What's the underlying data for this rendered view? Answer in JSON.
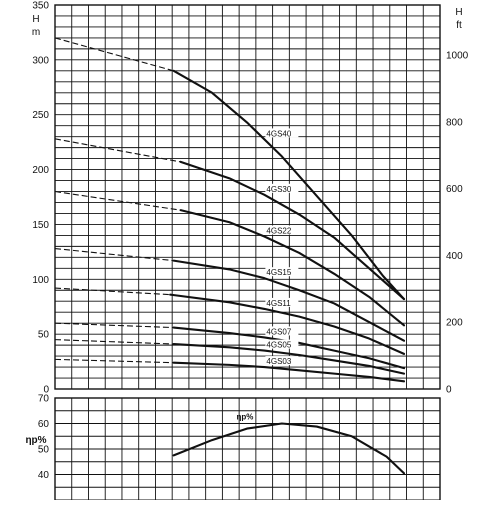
{
  "chart_data": [
    {
      "type": "line",
      "title": "",
      "ylabel_left": "H m",
      "ylabel_right": "H ft",
      "ylim": [
        0,
        350
      ],
      "ylim_right": [
        0,
        1150
      ],
      "yticks": [
        0,
        50,
        100,
        150,
        200,
        250,
        300,
        350
      ],
      "yticks_right": [
        0,
        200,
        400,
        600,
        800,
        1000
      ],
      "x_unit": "relative flow (0 = shut-off, 1 = end of curve)",
      "xlim": [
        0,
        1.0
      ],
      "grid": true,
      "legend": "labels on curves",
      "series": [
        {
          "name": "4GS40",
          "dashed_x": [
            0,
            0.34
          ],
          "dashed_y": [
            320,
            290
          ],
          "x": [
            0.34,
            0.45,
            0.55,
            0.65,
            0.75,
            0.85,
            0.94,
            1.0
          ],
          "y": [
            290,
            270,
            243,
            212,
            176,
            140,
            103,
            82
          ]
        },
        {
          "name": "4GS30",
          "dashed_x": [
            0,
            0.36
          ],
          "dashed_y": [
            228,
            207
          ],
          "x": [
            0.36,
            0.5,
            0.6,
            0.7,
            0.8,
            0.9,
            1.0
          ],
          "y": [
            207,
            192,
            177,
            159,
            138,
            110,
            82
          ]
        },
        {
          "name": "4GS22",
          "dashed_x": [
            0,
            0.36
          ],
          "dashed_y": [
            180,
            163
          ],
          "x": [
            0.36,
            0.5,
            0.6,
            0.7,
            0.8,
            0.9,
            1.0
          ],
          "y": [
            163,
            152,
            139,
            124,
            105,
            84,
            58
          ]
        },
        {
          "name": "4GS15",
          "dashed_x": [
            0,
            0.34
          ],
          "dashed_y": [
            128,
            117
          ],
          "x": [
            0.34,
            0.5,
            0.6,
            0.7,
            0.8,
            0.9,
            1.0
          ],
          "y": [
            117,
            109,
            101,
            90,
            78,
            61,
            44
          ]
        },
        {
          "name": "4GS11",
          "dashed_x": [
            0,
            0.33
          ],
          "dashed_y": [
            92,
            86
          ],
          "x": [
            0.33,
            0.5,
            0.6,
            0.7,
            0.8,
            0.9,
            1.0
          ],
          "y": [
            86,
            79,
            73,
            66,
            57,
            46,
            32
          ]
        },
        {
          "name": "4GS07",
          "dashed_x": [
            0,
            0.34
          ],
          "dashed_y": [
            60,
            56
          ],
          "x": [
            0.34,
            0.5,
            0.6,
            0.7,
            0.8,
            0.9,
            1.0
          ],
          "y": [
            56,
            51,
            47,
            42,
            35,
            28,
            19
          ]
        },
        {
          "name": "4GS05",
          "dashed_x": [
            0,
            0.34
          ],
          "dashed_y": [
            45,
            41
          ],
          "x": [
            0.34,
            0.5,
            0.6,
            0.7,
            0.8,
            0.9,
            1.0
          ],
          "y": [
            41,
            38,
            35,
            31,
            26,
            21,
            14
          ]
        },
        {
          "name": "4GS03",
          "dashed_x": [
            0,
            0.34
          ],
          "dashed_y": [
            27,
            24
          ],
          "x": [
            0.34,
            0.5,
            0.6,
            0.7,
            0.8,
            0.9,
            1.0
          ],
          "y": [
            24,
            22,
            20,
            17,
            14,
            11,
            7
          ]
        }
      ]
    },
    {
      "type": "line",
      "title": "",
      "ylabel_left": "ηp%",
      "ylim": [
        30,
        70
      ],
      "yticks": [
        40,
        50,
        60,
        70
      ],
      "x_unit": "relative flow (0 = shut-off, 1 = end of curve)",
      "xlim": [
        0,
        1.0
      ],
      "grid": true,
      "series": [
        {
          "name": "ηp%",
          "x": [
            0.34,
            0.45,
            0.55,
            0.65,
            0.75,
            0.85,
            0.95,
            1.0
          ],
          "y": [
            47.5,
            53.5,
            58,
            60,
            58.8,
            55,
            47,
            40.5
          ]
        }
      ]
    }
  ]
}
